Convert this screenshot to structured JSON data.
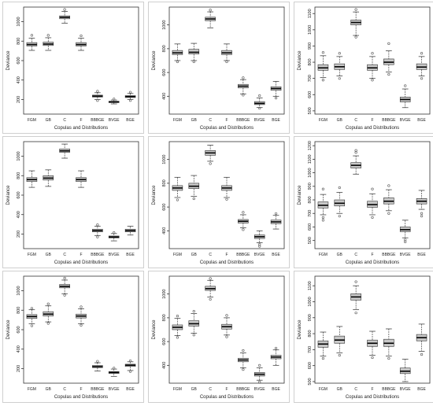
{
  "figure": {
    "rows": 3,
    "cols": 3,
    "y_label": "Deviance",
    "x_label": "Copulas and Distributions"
  },
  "style": {
    "box_fill": "#c8c8c8",
    "median_color": "#000000",
    "whisker_color": "#444444",
    "outlier_color": "#555555",
    "panel_border": "#cfcfcf"
  },
  "chart_data": [
    {
      "type": "boxplot",
      "xlabel": "Copulas and Distributions",
      "ylabel": "Deviance",
      "categories": [
        "FGM",
        "GB",
        "C",
        "F",
        "BBBGE",
        "BVGE",
        "BGE"
      ],
      "ylim": [
        50,
        1150
      ],
      "yticks": [
        200,
        400,
        600,
        800,
        1000
      ],
      "boxes": [
        {
          "min": 705,
          "q1": 750,
          "median": 765,
          "q3": 785,
          "max": 830,
          "outliers": [
            860
          ]
        },
        {
          "min": 705,
          "q1": 755,
          "median": 770,
          "q3": 790,
          "max": 835,
          "outliers": [
            860
          ]
        },
        {
          "min": 985,
          "q1": 1030,
          "median": 1045,
          "q3": 1060,
          "max": 1105,
          "outliers": [
            1125
          ]
        },
        {
          "min": 705,
          "q1": 750,
          "median": 765,
          "q3": 785,
          "max": 830,
          "outliers": [
            855
          ]
        },
        {
          "min": 200,
          "q1": 225,
          "median": 235,
          "q3": 245,
          "max": 270,
          "outliers": [
            285,
            190
          ]
        },
        {
          "min": 155,
          "q1": 168,
          "median": 175,
          "q3": 182,
          "max": 195,
          "outliers": [
            205
          ]
        },
        {
          "min": 200,
          "q1": 220,
          "median": 230,
          "q3": 240,
          "max": 262,
          "outliers": [
            275,
            190
          ]
        }
      ]
    },
    {
      "type": "boxplot",
      "xlabel": "Copulas and Distributions",
      "ylabel": "Deviance",
      "categories": [
        "FGM",
        "GB",
        "C",
        "F",
        "BBBGE",
        "BVGE",
        "BGE"
      ],
      "ylim": [
        250,
        1150
      ],
      "yticks": [
        400,
        600,
        800,
        1000
      ],
      "boxes": [
        {
          "min": 700,
          "q1": 750,
          "median": 765,
          "q3": 785,
          "max": 840,
          "outliers": [
            690
          ]
        },
        {
          "min": 700,
          "q1": 755,
          "median": 770,
          "q3": 795,
          "max": 845,
          "outliers": [
            690
          ]
        },
        {
          "min": 975,
          "q1": 1035,
          "median": 1050,
          "q3": 1065,
          "max": 1110,
          "outliers": [
            1125
          ]
        },
        {
          "min": 700,
          "q1": 750,
          "median": 765,
          "q3": 785,
          "max": 840,
          "outliers": [
            690
          ]
        },
        {
          "min": 420,
          "q1": 470,
          "median": 485,
          "q3": 500,
          "max": 540,
          "outliers": [
            555,
            410
          ]
        },
        {
          "min": 305,
          "q1": 330,
          "median": 340,
          "q3": 355,
          "max": 385,
          "outliers": [
            405,
            300
          ]
        },
        {
          "min": 400,
          "q1": 450,
          "median": 465,
          "q3": 480,
          "max": 525,
          "outliers": [
            385
          ]
        }
      ]
    },
    {
      "type": "boxplot",
      "xlabel": "Copulas and Distributions",
      "ylabel": "Deviance",
      "categories": [
        "FGM",
        "GB",
        "C",
        "F",
        "BBBGE",
        "BVGE",
        "BGE"
      ],
      "ylim": [
        480,
        1140
      ],
      "yticks": [
        500,
        600,
        700,
        800,
        900,
        1000,
        1100
      ],
      "boxes": [
        {
          "min": 705,
          "q1": 750,
          "median": 765,
          "q3": 785,
          "max": 840,
          "outliers": [
            860,
            690
          ]
        },
        {
          "min": 715,
          "q1": 755,
          "median": 772,
          "q3": 790,
          "max": 835,
          "outliers": [
            855,
            700
          ]
        },
        {
          "min": 965,
          "q1": 1030,
          "median": 1045,
          "q3": 1060,
          "max": 1110,
          "outliers": [
            1125,
            955
          ]
        },
        {
          "min": 700,
          "q1": 750,
          "median": 765,
          "q3": 785,
          "max": 835,
          "outliers": [
            855,
            690
          ]
        },
        {
          "min": 740,
          "q1": 785,
          "median": 800,
          "q3": 820,
          "max": 870,
          "outliers": [
            915,
            725
          ]
        },
        {
          "min": 520,
          "q1": 555,
          "median": 570,
          "q3": 585,
          "max": 635,
          "outliers": [
            655
          ]
        },
        {
          "min": 715,
          "q1": 755,
          "median": 770,
          "q3": 790,
          "max": 835,
          "outliers": [
            855,
            700
          ]
        }
      ]
    },
    {
      "type": "boxplot",
      "xlabel": "Copulas and Distributions",
      "ylabel": "Deviance",
      "categories": [
        "FGM",
        "GB",
        "C",
        "F",
        "BBBGE",
        "BVGE",
        "BGE"
      ],
      "ylim": [
        50,
        1150
      ],
      "yticks": [
        200,
        400,
        600,
        800,
        1000
      ],
      "boxes": [
        {
          "min": 680,
          "q1": 740,
          "median": 760,
          "q3": 780,
          "max": 850,
          "outliers": []
        },
        {
          "min": 690,
          "q1": 755,
          "median": 775,
          "q3": 800,
          "max": 860,
          "outliers": []
        },
        {
          "min": 980,
          "q1": 1040,
          "median": 1055,
          "q3": 1075,
          "max": 1125,
          "outliers": []
        },
        {
          "min": 680,
          "q1": 740,
          "median": 760,
          "q3": 780,
          "max": 850,
          "outliers": []
        },
        {
          "min": 185,
          "q1": 222,
          "median": 235,
          "q3": 250,
          "max": 280,
          "outliers": [
            295,
            170
          ]
        },
        {
          "min": 130,
          "q1": 160,
          "median": 170,
          "q3": 180,
          "max": 205,
          "outliers": [
            215
          ]
        },
        {
          "min": 190,
          "q1": 222,
          "median": 235,
          "q3": 250,
          "max": 280,
          "outliers": []
        }
      ]
    },
    {
      "type": "boxplot",
      "xlabel": "Copulas and Distributions",
      "ylabel": "Deviance",
      "categories": [
        "FGM",
        "GB",
        "C",
        "F",
        "BBBGE",
        "BVGE",
        "BGE"
      ],
      "ylim": [
        250,
        1150
      ],
      "yticks": [
        400,
        600,
        800,
        1000
      ],
      "boxes": [
        {
          "min": 680,
          "q1": 740,
          "median": 760,
          "q3": 780,
          "max": 850,
          "outliers": [
            660
          ]
        },
        {
          "min": 690,
          "q1": 755,
          "median": 775,
          "q3": 800,
          "max": 865,
          "outliers": [
            670
          ]
        },
        {
          "min": 985,
          "q1": 1035,
          "median": 1055,
          "q3": 1075,
          "max": 1120,
          "outliers": [
            965
          ]
        },
        {
          "min": 680,
          "q1": 740,
          "median": 760,
          "q3": 780,
          "max": 850,
          "outliers": [
            665
          ]
        },
        {
          "min": 425,
          "q1": 465,
          "median": 480,
          "q3": 495,
          "max": 535,
          "outliers": [
            555,
            410
          ]
        },
        {
          "min": 300,
          "q1": 335,
          "median": 350,
          "q3": 365,
          "max": 400,
          "outliers": [
            285,
            270
          ]
        },
        {
          "min": 415,
          "q1": 460,
          "median": 475,
          "q3": 490,
          "max": 530,
          "outliers": [
            545
          ]
        }
      ]
    },
    {
      "type": "boxplot",
      "xlabel": "Copulas and Distributions",
      "ylabel": "Deviance",
      "categories": [
        "FGM",
        "GB",
        "C",
        "F",
        "BBBGE",
        "BVGE",
        "BGE"
      ],
      "ylim": [
        440,
        1230
      ],
      "yticks": [
        500,
        600,
        700,
        800,
        900,
        1000,
        1100,
        1200
      ],
      "boxes": [
        {
          "min": 690,
          "q1": 740,
          "median": 760,
          "q3": 785,
          "max": 840,
          "outliers": [
            880,
            670,
            650
          ]
        },
        {
          "min": 700,
          "q1": 755,
          "median": 775,
          "q3": 800,
          "max": 855,
          "outliers": [
            890,
            680
          ]
        },
        {
          "min": 990,
          "q1": 1035,
          "median": 1055,
          "q3": 1075,
          "max": 1125,
          "outliers": [
            1165,
            1150
          ]
        },
        {
          "min": 690,
          "q1": 745,
          "median": 765,
          "q3": 790,
          "max": 845,
          "outliers": [
            880,
            670
          ]
        },
        {
          "min": 720,
          "q1": 770,
          "median": 790,
          "q3": 815,
          "max": 875,
          "outliers": [
            905,
            700
          ]
        },
        {
          "min": 520,
          "q1": 565,
          "median": 580,
          "q3": 600,
          "max": 650,
          "outliers": [
            505,
            490
          ]
        },
        {
          "min": 730,
          "q1": 770,
          "median": 790,
          "q3": 810,
          "max": 870,
          "outliers": [
            700,
            680
          ]
        }
      ]
    },
    {
      "type": "boxplot",
      "xlabel": "Copulas and Distributions",
      "ylabel": "Deviance",
      "categories": [
        "FGM",
        "GB",
        "C",
        "F",
        "BBBGE",
        "BVGE",
        "BGE"
      ],
      "ylim": [
        50,
        1150
      ],
      "yticks": [
        200,
        400,
        600,
        800,
        1000
      ],
      "boxes": [
        {
          "min": 660,
          "q1": 715,
          "median": 735,
          "q3": 755,
          "max": 805,
          "outliers": [
            820,
            640
          ]
        },
        {
          "min": 680,
          "q1": 740,
          "median": 760,
          "q3": 785,
          "max": 845,
          "outliers": [
            865,
            665
          ]
        },
        {
          "min": 970,
          "q1": 1030,
          "median": 1045,
          "q3": 1065,
          "max": 1110,
          "outliers": [
            1130,
            955
          ]
        },
        {
          "min": 660,
          "q1": 720,
          "median": 740,
          "q3": 760,
          "max": 815,
          "outliers": [
            835,
            645
          ]
        },
        {
          "min": 175,
          "q1": 210,
          "median": 220,
          "q3": 232,
          "max": 260,
          "outliers": [
            275
          ]
        },
        {
          "min": 120,
          "q1": 150,
          "median": 160,
          "q3": 170,
          "max": 195,
          "outliers": [
            205
          ]
        },
        {
          "min": 180,
          "q1": 222,
          "median": 235,
          "q3": 245,
          "max": 270,
          "outliers": [
            280,
            170
          ]
        }
      ]
    },
    {
      "type": "boxplot",
      "xlabel": "Copulas and Distributions",
      "ylabel": "Deviance",
      "categories": [
        "FGM",
        "GB",
        "C",
        "F",
        "BBBGE",
        "BVGE",
        "BGE"
      ],
      "ylim": [
        250,
        1150
      ],
      "yticks": [
        400,
        600,
        800,
        1000
      ],
      "boxes": [
        {
          "min": 650,
          "q1": 700,
          "median": 720,
          "q3": 740,
          "max": 795,
          "outliers": [
            815,
            635
          ]
        },
        {
          "min": 670,
          "q1": 730,
          "median": 750,
          "q3": 775,
          "max": 835,
          "outliers": [
            855,
            655
          ]
        },
        {
          "min": 975,
          "q1": 1030,
          "median": 1045,
          "q3": 1065,
          "max": 1115,
          "outliers": [
            1130,
            955
          ]
        },
        {
          "min": 655,
          "q1": 705,
          "median": 725,
          "q3": 745,
          "max": 800,
          "outliers": [
            820,
            640
          ]
        },
        {
          "min": 380,
          "q1": 430,
          "median": 445,
          "q3": 460,
          "max": 505,
          "outliers": [
            525,
            365
          ]
        },
        {
          "min": 275,
          "q1": 310,
          "median": 325,
          "q3": 340,
          "max": 380,
          "outliers": [
            400,
            260
          ]
        },
        {
          "min": 400,
          "q1": 455,
          "median": 470,
          "q3": 485,
          "max": 530,
          "outliers": [
            545
          ]
        }
      ]
    },
    {
      "type": "boxplot",
      "xlabel": "Copulas and Distributions",
      "ylabel": "Deviance",
      "categories": [
        "FGM",
        "GB",
        "C",
        "F",
        "BBBGE",
        "BVGE",
        "BGE"
      ],
      "ylim": [
        490,
        1160
      ],
      "yticks": [
        500,
        600,
        700,
        800,
        900,
        1000,
        1100
      ],
      "boxes": [
        {
          "min": 660,
          "q1": 715,
          "median": 735,
          "q3": 755,
          "max": 810,
          "outliers": [
            645
          ]
        },
        {
          "min": 680,
          "q1": 740,
          "median": 760,
          "q3": 785,
          "max": 845,
          "outliers": [
            665
          ]
        },
        {
          "min": 950,
          "q1": 1010,
          "median": 1030,
          "q3": 1050,
          "max": 1100,
          "outliers": [
            1125,
            930
          ]
        },
        {
          "min": 665,
          "q1": 720,
          "median": 740,
          "q3": 760,
          "max": 815,
          "outliers": [
            650
          ]
        },
        {
          "min": 660,
          "q1": 720,
          "median": 740,
          "q3": 765,
          "max": 830,
          "outliers": [
            645
          ]
        },
        {
          "min": 500,
          "q1": 550,
          "median": 565,
          "q3": 585,
          "max": 640,
          "outliers": []
        },
        {
          "min": 690,
          "q1": 755,
          "median": 775,
          "q3": 795,
          "max": 860,
          "outliers": [
            670
          ]
        }
      ]
    }
  ]
}
